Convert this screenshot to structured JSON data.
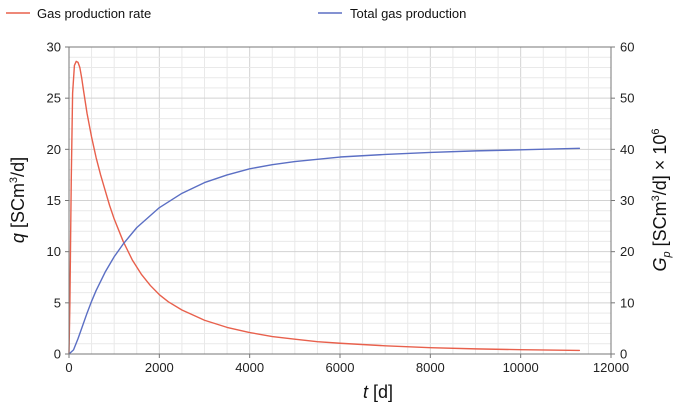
{
  "chart_data": {
    "type": "line",
    "legend_position": "top",
    "grid": true,
    "x": {
      "label_var": "t",
      "label_unit": " [d]",
      "range": [
        0,
        12000
      ],
      "ticks": [
        0,
        2000,
        4000,
        6000,
        8000,
        10000,
        12000
      ],
      "tick_labels": [
        "0",
        "2000",
        "4000",
        "6000",
        "8000",
        "10000",
        "12000"
      ]
    },
    "y_left": {
      "label_var": "q",
      "label_unit_pre": " [SCm",
      "label_unit_sup": "3",
      "label_unit_post": "/d]",
      "range": [
        0,
        30
      ],
      "ticks": [
        0,
        5,
        10,
        15,
        20,
        25,
        30
      ],
      "tick_labels": [
        "0",
        "5",
        "10",
        "15",
        "20",
        "25",
        "30"
      ]
    },
    "y_right": {
      "label_var": "G",
      "label_sub": "p",
      "label_unit_pre": " [SCm",
      "label_unit_sup": "3",
      "label_unit_mid": "/d] × 10",
      "label_unit_sup2": "6",
      "range": [
        0,
        60
      ],
      "ticks": [
        0,
        10,
        20,
        30,
        40,
        50,
        60
      ],
      "tick_labels": [
        "0",
        "10",
        "20",
        "30",
        "40",
        "50",
        "60"
      ]
    },
    "series": [
      {
        "name": "Gas production rate",
        "axis": "left",
        "color": "#e8604c",
        "x": [
          0,
          20,
          50,
          80,
          120,
          160,
          200,
          240,
          280,
          320,
          400,
          500,
          600,
          700,
          800,
          900,
          1000,
          1200,
          1400,
          1600,
          1800,
          2000,
          2200,
          2500,
          2800,
          3000,
          3500,
          4000,
          4500,
          5000,
          5500,
          6000,
          7000,
          8000,
          9000,
          10000,
          11300
        ],
        "y": [
          0,
          5,
          17,
          25.5,
          28.2,
          28.6,
          28.5,
          28.0,
          27.0,
          25.8,
          23.5,
          21.2,
          19.2,
          17.5,
          16.0,
          14.5,
          13.2,
          11.0,
          9.2,
          7.8,
          6.7,
          5.8,
          5.1,
          4.3,
          3.7,
          3.3,
          2.6,
          2.1,
          1.7,
          1.45,
          1.2,
          1.05,
          0.8,
          0.62,
          0.5,
          0.42,
          0.35
        ]
      },
      {
        "name": "Total gas production",
        "axis": "right",
        "color": "#5b6fc4",
        "x": [
          0,
          100,
          200,
          300,
          400,
          500,
          600,
          800,
          1000,
          1200,
          1500,
          2000,
          2500,
          3000,
          3500,
          4000,
          4500,
          5000,
          6000,
          7000,
          8000,
          9000,
          10000,
          11300
        ],
        "y": [
          0,
          0.8,
          3.0,
          5.5,
          8.0,
          10.3,
          12.4,
          16.0,
          19.0,
          21.5,
          24.7,
          28.6,
          31.4,
          33.5,
          35.0,
          36.2,
          37.0,
          37.6,
          38.5,
          39.0,
          39.4,
          39.7,
          39.9,
          40.2
        ]
      }
    ]
  }
}
